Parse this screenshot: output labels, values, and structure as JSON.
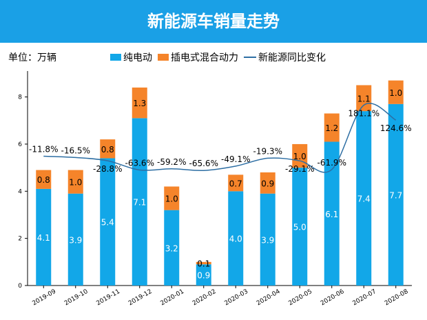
{
  "header": {
    "title": "新能源车销量走势"
  },
  "unit": "单位：万辆",
  "colors": {
    "bev": "#12a7e8",
    "phev": "#f5842a",
    "line": "#2d6ea3",
    "header": "#1aa0e6"
  },
  "chart_data": {
    "type": "bar",
    "stacked": true,
    "categories": [
      "2019-09",
      "2019-10",
      "2019-11",
      "2019-12",
      "2020-01",
      "2020-02",
      "2020-03",
      "2020-04",
      "2020-05",
      "2020-06",
      "2020-07",
      "2020-08"
    ],
    "series": [
      {
        "name": "纯电动",
        "type": "bar",
        "values": [
          4.1,
          3.9,
          5.4,
          7.1,
          3.2,
          0.9,
          4.0,
          3.9,
          5.0,
          6.1,
          7.4,
          7.7
        ]
      },
      {
        "name": "插电式混合动力",
        "type": "bar",
        "values": [
          0.8,
          1.0,
          0.8,
          1.3,
          1.0,
          0.1,
          0.7,
          0.9,
          1.0,
          1.2,
          1.1,
          1.0
        ]
      },
      {
        "name": "新能源同比变化",
        "type": "line",
        "axis": "secondary",
        "values": [
          -11.8,
          -16.5,
          -28.8,
          -63.6,
          -59.2,
          -65.6,
          -49.1,
          -19.3,
          -29.1,
          -61.9,
          181.1,
          124.6
        ],
        "unit": "%"
      }
    ],
    "yticks": [
      0,
      2,
      4,
      6,
      8
    ],
    "ylim": [
      0,
      9.1
    ],
    "y2lim": [
      -500,
      310
    ],
    "grid": false,
    "legend": "top"
  }
}
